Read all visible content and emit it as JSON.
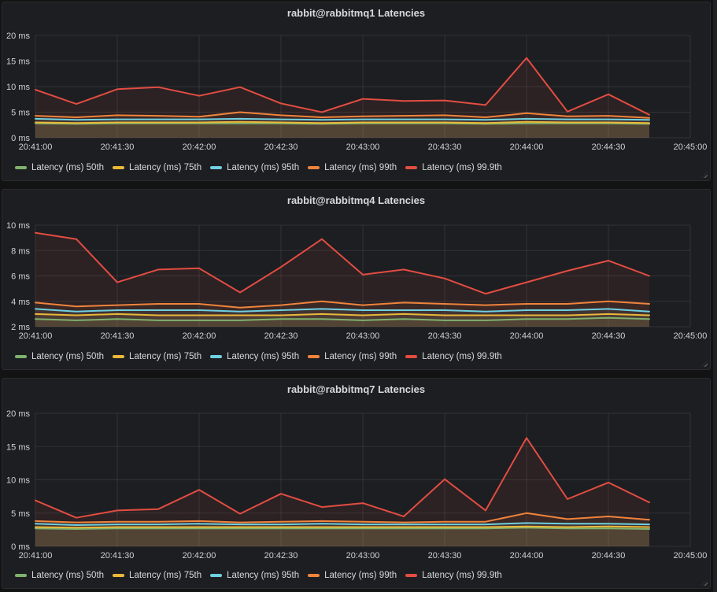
{
  "theme": {
    "background": "#131314",
    "panel_background": "#1d1e21",
    "grid_color": "rgba(255,255,255,0.09)",
    "text_color": "#d8d9da",
    "fill_opacity": 0.08
  },
  "chart_data": [
    {
      "type": "area",
      "title": "rabbit@rabbitmq1 Latencies",
      "xlabel": "",
      "ylabel": "ms",
      "ylim": [
        0,
        20
      ],
      "yticks": [
        0,
        5,
        10,
        15,
        20
      ],
      "ytick_suffix": " ms",
      "grid": true,
      "legend_position": "bottom-left",
      "x": [
        "20:41:00",
        "20:41:15",
        "20:41:30",
        "20:41:45",
        "20:42:00",
        "20:42:15",
        "20:42:30",
        "20:42:45",
        "20:43:00",
        "20:43:15",
        "20:43:30",
        "20:43:45",
        "20:44:00",
        "20:44:15",
        "20:44:30",
        "20:44:45"
      ],
      "x_tick_labels": [
        "20:41:00",
        "20:41:30",
        "20:42:00",
        "20:42:30",
        "20:43:00",
        "20:43:30",
        "20:44:00",
        "20:44:30",
        "20:45:00"
      ],
      "series": [
        {
          "name": "Latency (ms) 50th",
          "color": "#7EB26D",
          "values": [
            2.8,
            2.7,
            2.8,
            2.8,
            2.8,
            2.8,
            2.8,
            2.7,
            2.8,
            2.8,
            2.8,
            2.7,
            2.8,
            2.8,
            2.8,
            2.7
          ]
        },
        {
          "name": "Latency (ms) 75th",
          "color": "#EAB839",
          "values": [
            3.0,
            2.9,
            3.0,
            3.0,
            3.0,
            3.1,
            3.0,
            2.9,
            3.0,
            3.0,
            3.0,
            2.9,
            3.1,
            3.0,
            3.0,
            2.9
          ]
        },
        {
          "name": "Latency (ms) 95th",
          "color": "#6ED0E0",
          "values": [
            3.7,
            3.5,
            3.6,
            3.6,
            3.6,
            3.7,
            3.6,
            3.5,
            3.6,
            3.6,
            3.6,
            3.5,
            3.7,
            3.6,
            3.6,
            3.5
          ]
        },
        {
          "name": "Latency (ms) 99th",
          "color": "#EF843C",
          "values": [
            4.3,
            4.0,
            4.4,
            4.3,
            4.1,
            5.0,
            4.4,
            4.0,
            4.2,
            4.3,
            4.4,
            4.0,
            4.8,
            4.2,
            4.3,
            3.9
          ]
        },
        {
          "name": "Latency (ms) 99.9th",
          "color": "#E24D42",
          "values": [
            9.4,
            6.6,
            9.5,
            9.9,
            8.2,
            9.9,
            6.7,
            5.0,
            7.6,
            7.2,
            7.3,
            6.4,
            15.6,
            5.1,
            8.5,
            4.5
          ]
        }
      ]
    },
    {
      "type": "area",
      "title": "rabbit@rabbitmq4 Latencies",
      "xlabel": "",
      "ylabel": "ms",
      "ylim": [
        2,
        10
      ],
      "yticks": [
        2,
        4,
        6,
        8,
        10
      ],
      "ytick_suffix": " ms",
      "grid": true,
      "legend_position": "bottom-left",
      "x": [
        "20:41:00",
        "20:41:15",
        "20:41:30",
        "20:41:45",
        "20:42:00",
        "20:42:15",
        "20:42:30",
        "20:42:45",
        "20:43:00",
        "20:43:15",
        "20:43:30",
        "20:43:45",
        "20:44:00",
        "20:44:15",
        "20:44:30",
        "20:44:45"
      ],
      "x_tick_labels": [
        "20:41:00",
        "20:41:30",
        "20:42:00",
        "20:42:30",
        "20:43:00",
        "20:43:30",
        "20:44:00",
        "20:44:30",
        "20:45:00"
      ],
      "series": [
        {
          "name": "Latency (ms) 50th",
          "color": "#7EB26D",
          "values": [
            2.6,
            2.5,
            2.6,
            2.5,
            2.5,
            2.5,
            2.6,
            2.6,
            2.5,
            2.6,
            2.5,
            2.5,
            2.6,
            2.6,
            2.7,
            2.6
          ]
        },
        {
          "name": "Latency (ms) 75th",
          "color": "#EAB839",
          "values": [
            3.0,
            2.9,
            3.0,
            2.9,
            2.9,
            2.9,
            2.9,
            3.0,
            2.9,
            3.0,
            2.9,
            2.9,
            2.9,
            2.9,
            3.0,
            2.9
          ]
        },
        {
          "name": "Latency (ms) 95th",
          "color": "#6ED0E0",
          "values": [
            3.4,
            3.2,
            3.3,
            3.3,
            3.3,
            3.2,
            3.3,
            3.4,
            3.3,
            3.3,
            3.3,
            3.2,
            3.3,
            3.3,
            3.4,
            3.2
          ]
        },
        {
          "name": "Latency (ms) 99th",
          "color": "#EF843C",
          "values": [
            3.9,
            3.6,
            3.7,
            3.8,
            3.8,
            3.5,
            3.7,
            4.0,
            3.7,
            3.9,
            3.8,
            3.7,
            3.8,
            3.8,
            4.0,
            3.8
          ]
        },
        {
          "name": "Latency (ms) 99.9th",
          "color": "#E24D42",
          "values": [
            9.4,
            8.9,
            5.5,
            6.5,
            6.6,
            4.7,
            6.7,
            8.9,
            6.1,
            6.5,
            5.8,
            4.6,
            5.5,
            6.4,
            7.2,
            6.0
          ]
        }
      ]
    },
    {
      "type": "area",
      "title": "rabbit@rabbitmq7 Latencies",
      "xlabel": "",
      "ylabel": "ms",
      "ylim": [
        0,
        20
      ],
      "yticks": [
        0,
        5,
        10,
        15,
        20
      ],
      "ytick_suffix": " ms",
      "grid": true,
      "legend_position": "bottom-left",
      "x": [
        "20:41:00",
        "20:41:15",
        "20:41:30",
        "20:41:45",
        "20:42:00",
        "20:42:15",
        "20:42:30",
        "20:42:45",
        "20:43:00",
        "20:43:15",
        "20:43:30",
        "20:43:45",
        "20:44:00",
        "20:44:15",
        "20:44:30",
        "20:44:45"
      ],
      "x_tick_labels": [
        "20:41:00",
        "20:41:30",
        "20:42:00",
        "20:42:30",
        "20:43:00",
        "20:43:30",
        "20:44:00",
        "20:44:30",
        "20:45:00"
      ],
      "series": [
        {
          "name": "Latency (ms) 50th",
          "color": "#7EB26D",
          "values": [
            2.7,
            2.6,
            2.7,
            2.7,
            2.7,
            2.7,
            2.7,
            2.7,
            2.7,
            2.7,
            2.7,
            2.7,
            2.8,
            2.7,
            2.7,
            2.6
          ]
        },
        {
          "name": "Latency (ms) 75th",
          "color": "#EAB839",
          "values": [
            2.9,
            2.8,
            2.9,
            2.9,
            2.9,
            2.9,
            2.9,
            2.9,
            2.9,
            2.9,
            2.9,
            2.9,
            3.0,
            2.9,
            3.0,
            2.9
          ]
        },
        {
          "name": "Latency (ms) 95th",
          "color": "#6ED0E0",
          "values": [
            3.4,
            3.2,
            3.3,
            3.3,
            3.4,
            3.3,
            3.3,
            3.4,
            3.3,
            3.3,
            3.3,
            3.3,
            3.5,
            3.4,
            3.4,
            3.3
          ]
        },
        {
          "name": "Latency (ms) 99th",
          "color": "#EF843C",
          "values": [
            3.8,
            3.6,
            3.7,
            3.7,
            3.8,
            3.6,
            3.7,
            3.8,
            3.7,
            3.6,
            3.7,
            3.7,
            5.0,
            4.1,
            4.5,
            4.0
          ]
        },
        {
          "name": "Latency (ms) 99.9th",
          "color": "#E24D42",
          "values": [
            6.9,
            4.3,
            5.4,
            5.6,
            8.5,
            4.9,
            7.9,
            5.9,
            6.5,
            4.5,
            10.1,
            5.4,
            16.3,
            7.1,
            9.6,
            6.6
          ]
        }
      ]
    }
  ]
}
